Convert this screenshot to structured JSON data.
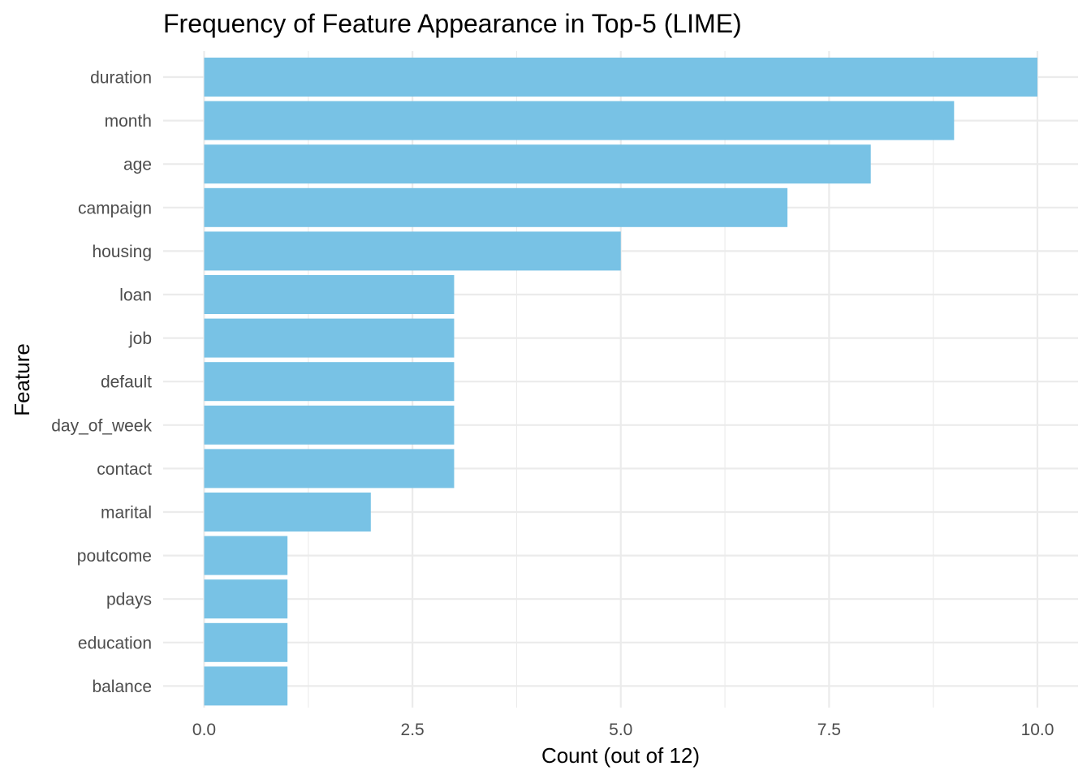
{
  "chart_data": {
    "type": "bar",
    "orientation": "horizontal",
    "title": "Frequency of Feature Appearance in Top-5 (LIME)",
    "xlabel": "Count (out of 12)",
    "ylabel": "Feature",
    "categories": [
      "duration",
      "month",
      "age",
      "campaign",
      "housing",
      "loan",
      "job",
      "default",
      "day_of_week",
      "contact",
      "marital",
      "poutcome",
      "pdays",
      "education",
      "balance"
    ],
    "values": [
      10,
      9,
      8,
      7,
      5,
      3,
      3,
      3,
      3,
      3,
      2,
      1,
      1,
      1,
      1
    ],
    "xlim": [
      0,
      10
    ],
    "x_ticks": [
      0,
      2.5,
      5,
      7.5,
      10
    ],
    "x_tick_labels": [
      "0.0",
      "2.5",
      "5.0",
      "7.5",
      "10.0"
    ],
    "grid": true,
    "legend": "none",
    "bar_color": "#78c2e5",
    "grid_color": "#ebebeb"
  }
}
